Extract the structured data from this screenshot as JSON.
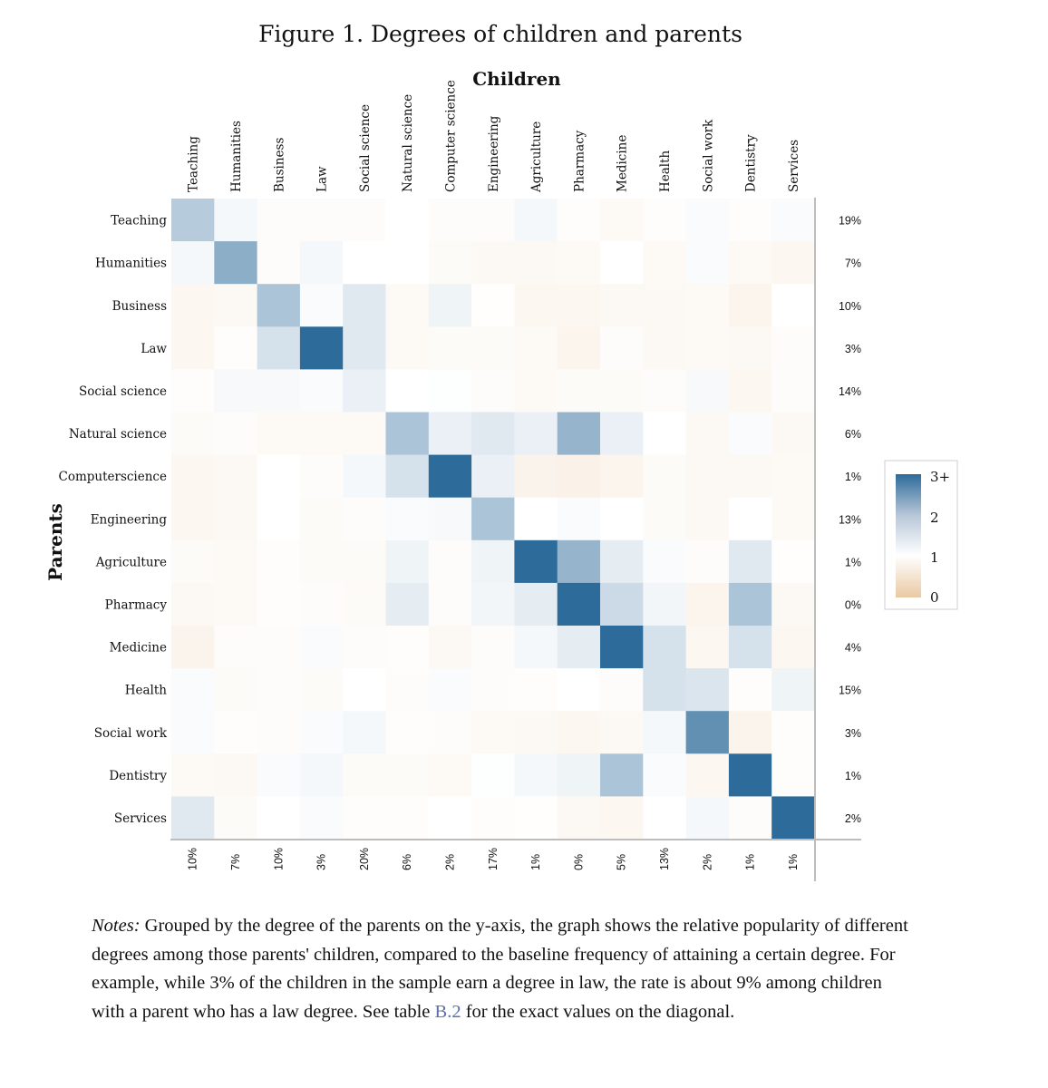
{
  "figure": {
    "title": "Figure 1. Degrees of children and parents"
  },
  "chart_data": {
    "type": "heatmap",
    "x_title": "Children",
    "y_title": "Parents",
    "categories": [
      "Teaching",
      "Humanities",
      "Business",
      "Law",
      "Social science",
      "Natural science",
      "Computer science",
      "Engineering",
      "Agriculture",
      "Pharmacy",
      "Medicine",
      "Health",
      "Social work",
      "Dentistry",
      "Services"
    ],
    "x_labels": [
      "Teaching",
      "Humanities",
      "Business",
      "Law",
      "Social science",
      "Natural science",
      "Computer science",
      "Engineering",
      "Agriculture",
      "Pharmacy",
      "Medicine",
      "Health",
      "Social work",
      "Dentistry",
      "Services"
    ],
    "y_labels": [
      "Teaching",
      "Humanities",
      "Business",
      "Law",
      "Social science",
      "Natural science",
      "Computerscience",
      "Engineering",
      "Agriculture",
      "Pharmacy",
      "Medicine",
      "Health",
      "Social work",
      "Dentistry",
      "Services"
    ],
    "column_shares": [
      "10%",
      "7%",
      "10%",
      "3%",
      "20%",
      "6%",
      "2%",
      "17%",
      "1%",
      "0%",
      "5%",
      "13%",
      "2%",
      "1%",
      "1%"
    ],
    "row_shares": [
      "19%",
      "7%",
      "10%",
      "3%",
      "14%",
      "6%",
      "1%",
      "13%",
      "1%",
      "0%",
      "4%",
      "15%",
      "3%",
      "1%",
      "2%"
    ],
    "values": [
      [
        1.7,
        1.1,
        0.95,
        0.95,
        0.95,
        1.0,
        0.95,
        0.95,
        1.1,
        0.97,
        0.9,
        0.97,
        1.05,
        0.97,
        1.05
      ],
      [
        1.1,
        2.1,
        0.95,
        1.1,
        1.0,
        1.0,
        0.92,
        0.88,
        0.88,
        0.9,
        1.0,
        0.9,
        1.05,
        0.9,
        0.85
      ],
      [
        0.85,
        0.88,
        1.8,
        1.05,
        1.3,
        0.9,
        1.15,
        0.98,
        0.85,
        0.85,
        0.88,
        0.88,
        0.9,
        0.82,
        1.0
      ],
      [
        0.85,
        0.97,
        1.4,
        3.5,
        1.3,
        0.9,
        0.92,
        0.92,
        0.9,
        0.82,
        0.95,
        0.88,
        0.9,
        0.88,
        0.95
      ],
      [
        0.97,
        1.08,
        1.08,
        1.05,
        1.2,
        1.0,
        1.02,
        0.95,
        0.9,
        0.92,
        0.92,
        0.95,
        1.08,
        0.85,
        0.95
      ],
      [
        0.92,
        0.95,
        0.9,
        0.9,
        0.9,
        1.8,
        1.2,
        1.3,
        1.2,
        2.0,
        1.2,
        1.0,
        0.88,
        1.05,
        0.88
      ],
      [
        0.85,
        0.88,
        1.0,
        0.95,
        1.1,
        1.4,
        3.5,
        1.2,
        0.78,
        0.75,
        0.82,
        0.92,
        0.88,
        0.88,
        0.9
      ],
      [
        0.85,
        0.88,
        1.0,
        0.92,
        0.95,
        1.05,
        1.08,
        1.8,
        1.0,
        1.05,
        1.0,
        0.92,
        0.88,
        1.0,
        0.9
      ],
      [
        0.92,
        0.9,
        0.97,
        0.92,
        0.92,
        1.15,
        0.95,
        1.15,
        3.5,
        2.0,
        1.25,
        1.05,
        0.95,
        1.3,
        0.98
      ],
      [
        0.88,
        0.9,
        0.97,
        0.95,
        0.92,
        1.25,
        0.95,
        1.12,
        1.25,
        3.5,
        1.5,
        1.12,
        0.82,
        1.8,
        0.88
      ],
      [
        0.8,
        0.95,
        0.95,
        1.05,
        0.95,
        0.97,
        0.88,
        0.95,
        1.1,
        1.25,
        3.0,
        1.4,
        0.85,
        1.4,
        0.85
      ],
      [
        1.05,
        0.92,
        0.95,
        0.92,
        1.0,
        0.95,
        1.05,
        0.95,
        0.97,
        1.0,
        0.95,
        1.4,
        1.35,
        0.97,
        1.15
      ],
      [
        1.05,
        0.97,
        0.95,
        1.05,
        1.1,
        0.97,
        0.95,
        0.9,
        0.88,
        0.85,
        0.88,
        1.1,
        2.5,
        0.8,
        0.97
      ],
      [
        0.9,
        0.88,
        1.05,
        1.1,
        0.92,
        0.92,
        0.9,
        1.02,
        1.1,
        1.15,
        1.8,
        1.05,
        0.85,
        3.5,
        0.97
      ],
      [
        1.3,
        0.92,
        1.0,
        1.05,
        0.97,
        0.97,
        1.0,
        0.97,
        0.98,
        0.88,
        0.85,
        1.0,
        1.1,
        0.95,
        3.5
      ]
    ],
    "color_scale": {
      "min": 0,
      "mid": 1,
      "max": 3,
      "low_color": "#e9c9a2",
      "mid_color": "#ffffff",
      "high_color": "#2d6b9a"
    },
    "legend_ticks": [
      "3+",
      "2",
      "1",
      "0"
    ]
  },
  "notes": {
    "label": "Notes:",
    "text_before": " Grouped by the degree of the parents on the y-axis, the graph shows the relative popularity of different degrees among those parents' children, compared to the baseline frequency of attaining a certain degree. For example, while 3% of the children in the sample earn a degree in law, the rate is about 9% among children with a parent who has a law degree. See table ",
    "ref": "B.2",
    "text_after": " for the exact values on the diagonal."
  },
  "colors": {
    "text": "#111111",
    "axis": "#bdbdbd",
    "ref": "#5b6fa8"
  }
}
